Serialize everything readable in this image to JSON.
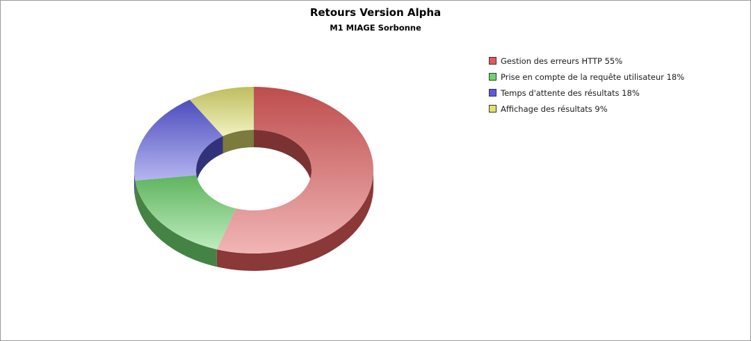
{
  "chart_data": {
    "type": "pie",
    "style": "3d-donut",
    "title": "Retours Version Alpha",
    "subtitle": "M1 MIAGE Sorbonne",
    "legend_position": "right",
    "slices": [
      {
        "label": "Gestion des erreurs HTTP 55%",
        "value": 55,
        "color": "#e05a5a"
      },
      {
        "label": "Prise en compte de la requête utilisateur 18%",
        "value": 18,
        "color": "#6fd46f"
      },
      {
        "label": "Temps d'attente des résultats 18%",
        "value": 18,
        "color": "#5a5ae0"
      },
      {
        "label": "Affichage des résultats 9%",
        "value": 9,
        "color": "#e0e070"
      }
    ]
  }
}
